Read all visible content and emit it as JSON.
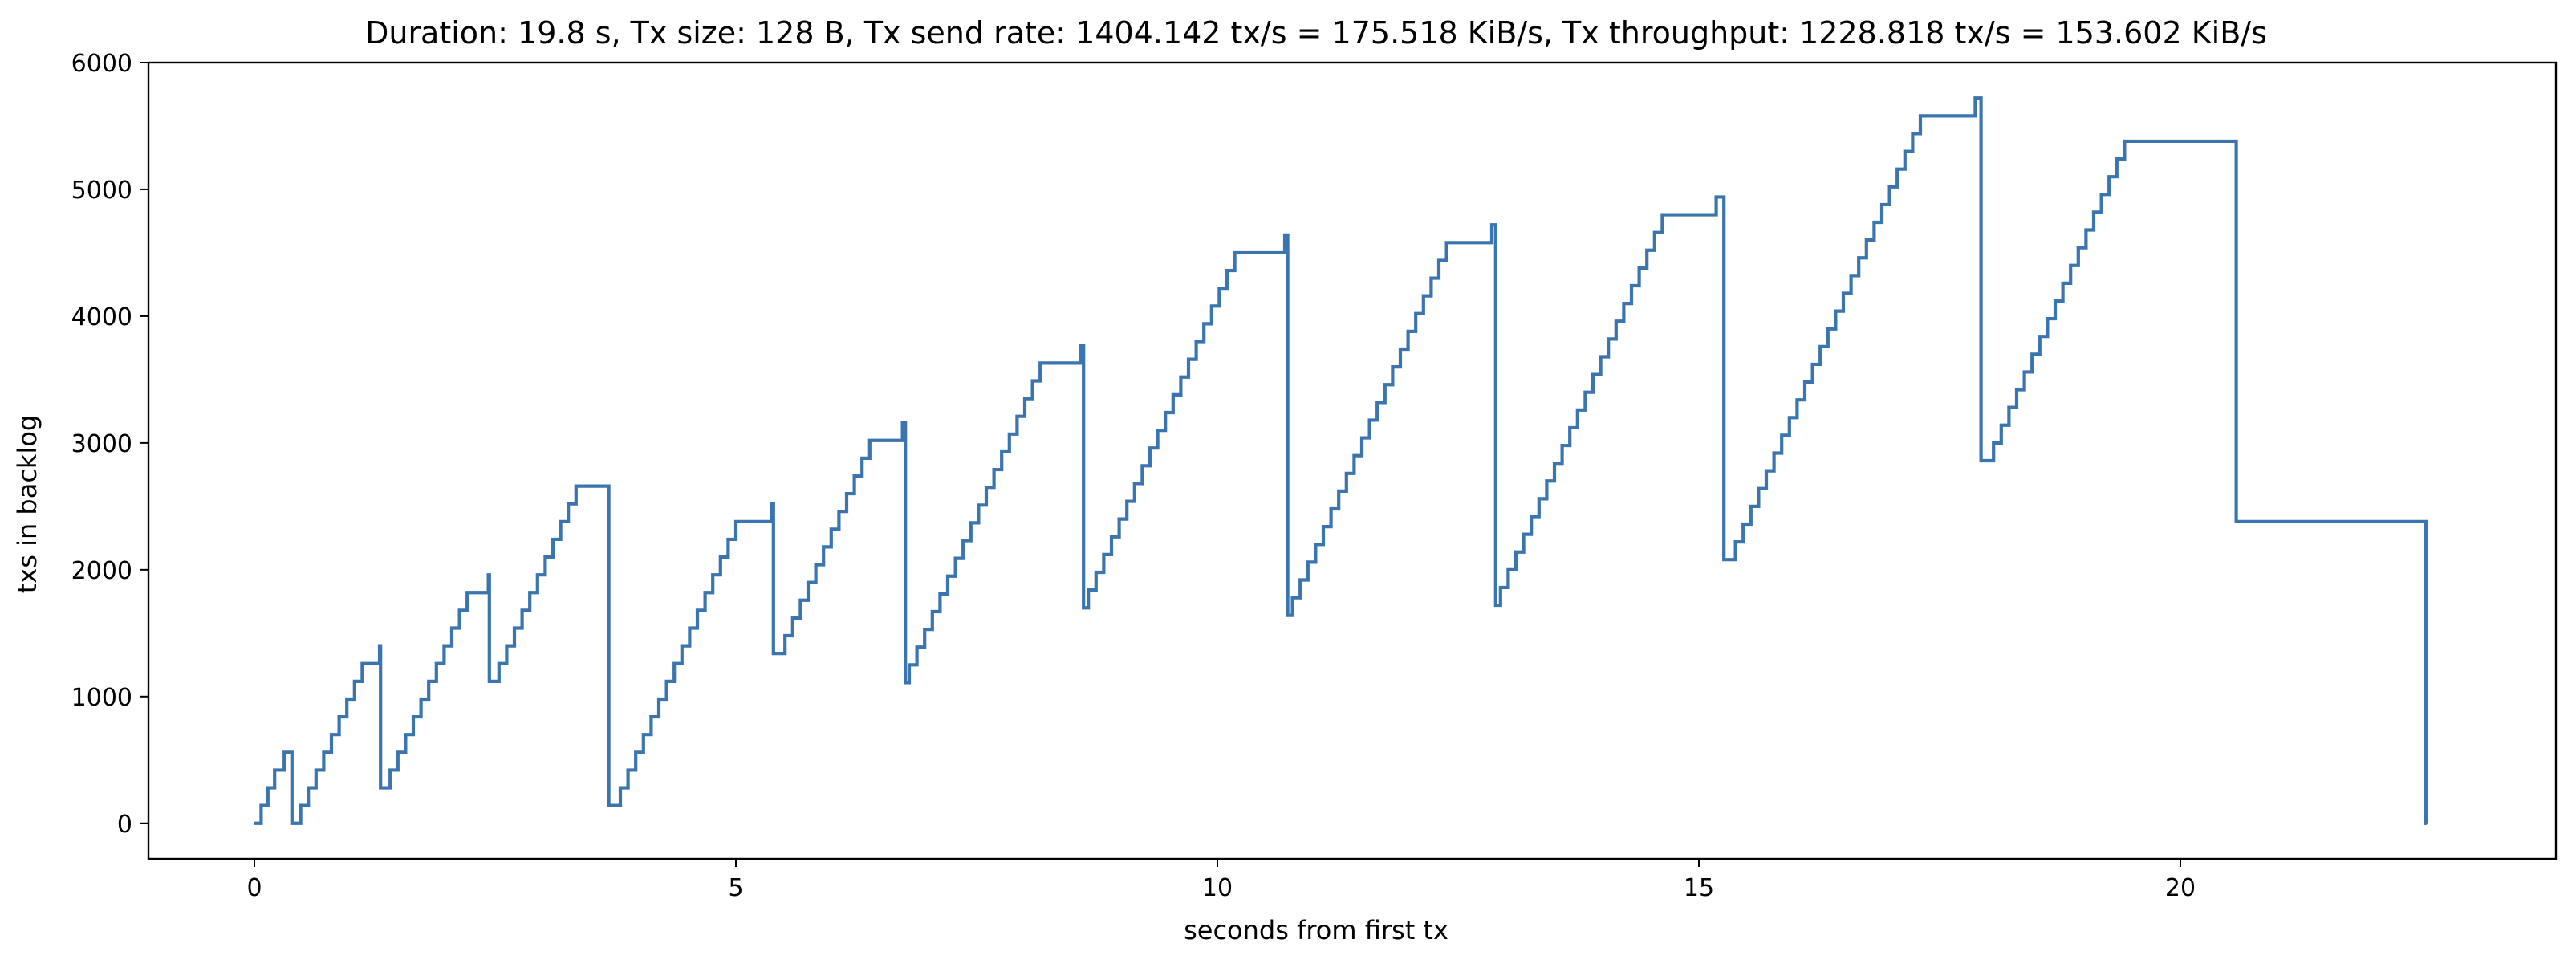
{
  "chart_data": {
    "type": "line",
    "title": "Duration: 19.8 s, Tx size: 128 B, Tx send rate: 1404.142 tx/s = 175.518 KiB/s, Tx throughput: 1228.818 tx/s = 153.602 KiB/s",
    "xlabel": "seconds from first tx",
    "ylabel": "txs in backlog",
    "xlim": [
      -1.1,
      23.9
    ],
    "ylim": [
      -280,
      6000
    ],
    "xticks": [
      0,
      5,
      10,
      15,
      20
    ],
    "yticks": [
      0,
      1000,
      2000,
      3000,
      4000,
      5000,
      6000
    ],
    "grid": false,
    "line_color": "#3b75af",
    "series": [
      {
        "name": "",
        "step": "post",
        "points": [
          [
            0.0,
            0
          ],
          [
            0.07,
            140
          ],
          [
            0.14,
            280
          ],
          [
            0.21,
            420
          ],
          [
            0.31,
            560
          ],
          [
            0.37,
            560
          ],
          [
            0.39,
            0
          ],
          [
            0.4,
            0
          ],
          [
            0.48,
            140
          ],
          [
            0.56,
            280
          ],
          [
            0.64,
            420
          ],
          [
            0.72,
            560
          ],
          [
            0.8,
            700
          ],
          [
            0.88,
            840
          ],
          [
            0.96,
            980
          ],
          [
            1.04,
            1120
          ],
          [
            1.12,
            1260
          ],
          [
            1.3,
            1400
          ],
          [
            1.31,
            280
          ],
          [
            1.33,
            280
          ],
          [
            1.41,
            420
          ],
          [
            1.49,
            560
          ],
          [
            1.57,
            700
          ],
          [
            1.65,
            840
          ],
          [
            1.73,
            980
          ],
          [
            1.81,
            1120
          ],
          [
            1.89,
            1260
          ],
          [
            1.97,
            1400
          ],
          [
            2.05,
            1540
          ],
          [
            2.13,
            1680
          ],
          [
            2.21,
            1820
          ],
          [
            2.43,
            1960
          ],
          [
            2.44,
            1120
          ],
          [
            2.46,
            1120
          ],
          [
            2.54,
            1260
          ],
          [
            2.62,
            1400
          ],
          [
            2.7,
            1540
          ],
          [
            2.78,
            1680
          ],
          [
            2.86,
            1820
          ],
          [
            2.94,
            1960
          ],
          [
            3.02,
            2100
          ],
          [
            3.1,
            2240
          ],
          [
            3.18,
            2380
          ],
          [
            3.26,
            2520
          ],
          [
            3.34,
            2660
          ],
          [
            3.67,
            2660
          ],
          [
            3.68,
            140
          ],
          [
            3.72,
            140
          ],
          [
            3.8,
            280
          ],
          [
            3.88,
            420
          ],
          [
            3.96,
            560
          ],
          [
            4.04,
            700
          ],
          [
            4.12,
            840
          ],
          [
            4.2,
            980
          ],
          [
            4.28,
            1120
          ],
          [
            4.36,
            1260
          ],
          [
            4.44,
            1400
          ],
          [
            4.52,
            1540
          ],
          [
            4.6,
            1680
          ],
          [
            4.68,
            1820
          ],
          [
            4.76,
            1960
          ],
          [
            4.84,
            2100
          ],
          [
            4.92,
            2240
          ],
          [
            5.0,
            2380
          ],
          [
            5.37,
            2520
          ],
          [
            5.39,
            1340
          ],
          [
            5.43,
            1340
          ],
          [
            5.51,
            1480
          ],
          [
            5.59,
            1620
          ],
          [
            5.67,
            1760
          ],
          [
            5.75,
            1900
          ],
          [
            5.83,
            2040
          ],
          [
            5.91,
            2180
          ],
          [
            5.99,
            2320
          ],
          [
            6.07,
            2460
          ],
          [
            6.15,
            2600
          ],
          [
            6.23,
            2740
          ],
          [
            6.31,
            2880
          ],
          [
            6.39,
            3020
          ],
          [
            6.73,
            3160
          ],
          [
            6.76,
            1110
          ],
          [
            6.8,
            1250
          ],
          [
            6.88,
            1390
          ],
          [
            6.96,
            1530
          ],
          [
            7.04,
            1670
          ],
          [
            7.12,
            1810
          ],
          [
            7.2,
            1950
          ],
          [
            7.28,
            2090
          ],
          [
            7.36,
            2230
          ],
          [
            7.44,
            2370
          ],
          [
            7.52,
            2510
          ],
          [
            7.6,
            2650
          ],
          [
            7.68,
            2790
          ],
          [
            7.76,
            2930
          ],
          [
            7.84,
            3070
          ],
          [
            7.92,
            3210
          ],
          [
            8.0,
            3350
          ],
          [
            8.08,
            3490
          ],
          [
            8.16,
            3630
          ],
          [
            8.58,
            3770
          ],
          [
            8.61,
            1700
          ],
          [
            8.66,
            1840
          ],
          [
            8.74,
            1980
          ],
          [
            8.82,
            2120
          ],
          [
            8.9,
            2260
          ],
          [
            8.98,
            2400
          ],
          [
            9.06,
            2540
          ],
          [
            9.14,
            2680
          ],
          [
            9.22,
            2820
          ],
          [
            9.3,
            2960
          ],
          [
            9.38,
            3100
          ],
          [
            9.46,
            3240
          ],
          [
            9.54,
            3380
          ],
          [
            9.62,
            3520
          ],
          [
            9.7,
            3660
          ],
          [
            9.78,
            3800
          ],
          [
            9.86,
            3940
          ],
          [
            9.94,
            4080
          ],
          [
            10.02,
            4220
          ],
          [
            10.1,
            4360
          ],
          [
            10.18,
            4500
          ],
          [
            10.7,
            4640
          ],
          [
            10.73,
            1640
          ],
          [
            10.78,
            1780
          ],
          [
            10.86,
            1920
          ],
          [
            10.94,
            2060
          ],
          [
            11.02,
            2200
          ],
          [
            11.1,
            2340
          ],
          [
            11.18,
            2480
          ],
          [
            11.26,
            2620
          ],
          [
            11.34,
            2760
          ],
          [
            11.42,
            2900
          ],
          [
            11.5,
            3040
          ],
          [
            11.58,
            3180
          ],
          [
            11.66,
            3320
          ],
          [
            11.74,
            3460
          ],
          [
            11.82,
            3600
          ],
          [
            11.9,
            3740
          ],
          [
            11.98,
            3880
          ],
          [
            12.06,
            4020
          ],
          [
            12.14,
            4160
          ],
          [
            12.22,
            4300
          ],
          [
            12.3,
            4440
          ],
          [
            12.38,
            4580
          ],
          [
            12.85,
            4720
          ],
          [
            12.89,
            1720
          ],
          [
            12.94,
            1860
          ],
          [
            13.02,
            2000
          ],
          [
            13.1,
            2140
          ],
          [
            13.18,
            2280
          ],
          [
            13.26,
            2420
          ],
          [
            13.34,
            2560
          ],
          [
            13.42,
            2700
          ],
          [
            13.5,
            2840
          ],
          [
            13.58,
            2980
          ],
          [
            13.66,
            3120
          ],
          [
            13.74,
            3260
          ],
          [
            13.82,
            3400
          ],
          [
            13.9,
            3540
          ],
          [
            13.98,
            3680
          ],
          [
            14.06,
            3820
          ],
          [
            14.14,
            3960
          ],
          [
            14.22,
            4100
          ],
          [
            14.3,
            4240
          ],
          [
            14.38,
            4380
          ],
          [
            14.46,
            4520
          ],
          [
            14.54,
            4660
          ],
          [
            14.62,
            4800
          ],
          [
            15.18,
            4940
          ],
          [
            15.26,
            2080
          ],
          [
            15.38,
            2220
          ],
          [
            15.46,
            2360
          ],
          [
            15.54,
            2500
          ],
          [
            15.62,
            2640
          ],
          [
            15.7,
            2780
          ],
          [
            15.78,
            2920
          ],
          [
            15.86,
            3060
          ],
          [
            15.94,
            3200
          ],
          [
            16.02,
            3340
          ],
          [
            16.1,
            3480
          ],
          [
            16.18,
            3620
          ],
          [
            16.26,
            3760
          ],
          [
            16.34,
            3900
          ],
          [
            16.42,
            4040
          ],
          [
            16.5,
            4180
          ],
          [
            16.58,
            4320
          ],
          [
            16.66,
            4460
          ],
          [
            16.74,
            4600
          ],
          [
            16.82,
            4740
          ],
          [
            16.9,
            4880
          ],
          [
            16.98,
            5020
          ],
          [
            17.06,
            5160
          ],
          [
            17.14,
            5300
          ],
          [
            17.22,
            5440
          ],
          [
            17.3,
            5580
          ],
          [
            17.87,
            5720
          ],
          [
            17.93,
            2860
          ],
          [
            18.06,
            3000
          ],
          [
            18.14,
            3140
          ],
          [
            18.22,
            3280
          ],
          [
            18.3,
            3420
          ],
          [
            18.38,
            3560
          ],
          [
            18.46,
            3700
          ],
          [
            18.54,
            3840
          ],
          [
            18.62,
            3980
          ],
          [
            18.7,
            4120
          ],
          [
            18.78,
            4260
          ],
          [
            18.86,
            4400
          ],
          [
            18.94,
            4540
          ],
          [
            19.02,
            4680
          ],
          [
            19.1,
            4820
          ],
          [
            19.18,
            4960
          ],
          [
            19.26,
            5100
          ],
          [
            19.34,
            5240
          ],
          [
            19.42,
            5380
          ],
          [
            20.58,
            2380
          ],
          [
            22.55,
            0
          ],
          [
            22.56,
            0
          ]
        ]
      }
    ]
  }
}
